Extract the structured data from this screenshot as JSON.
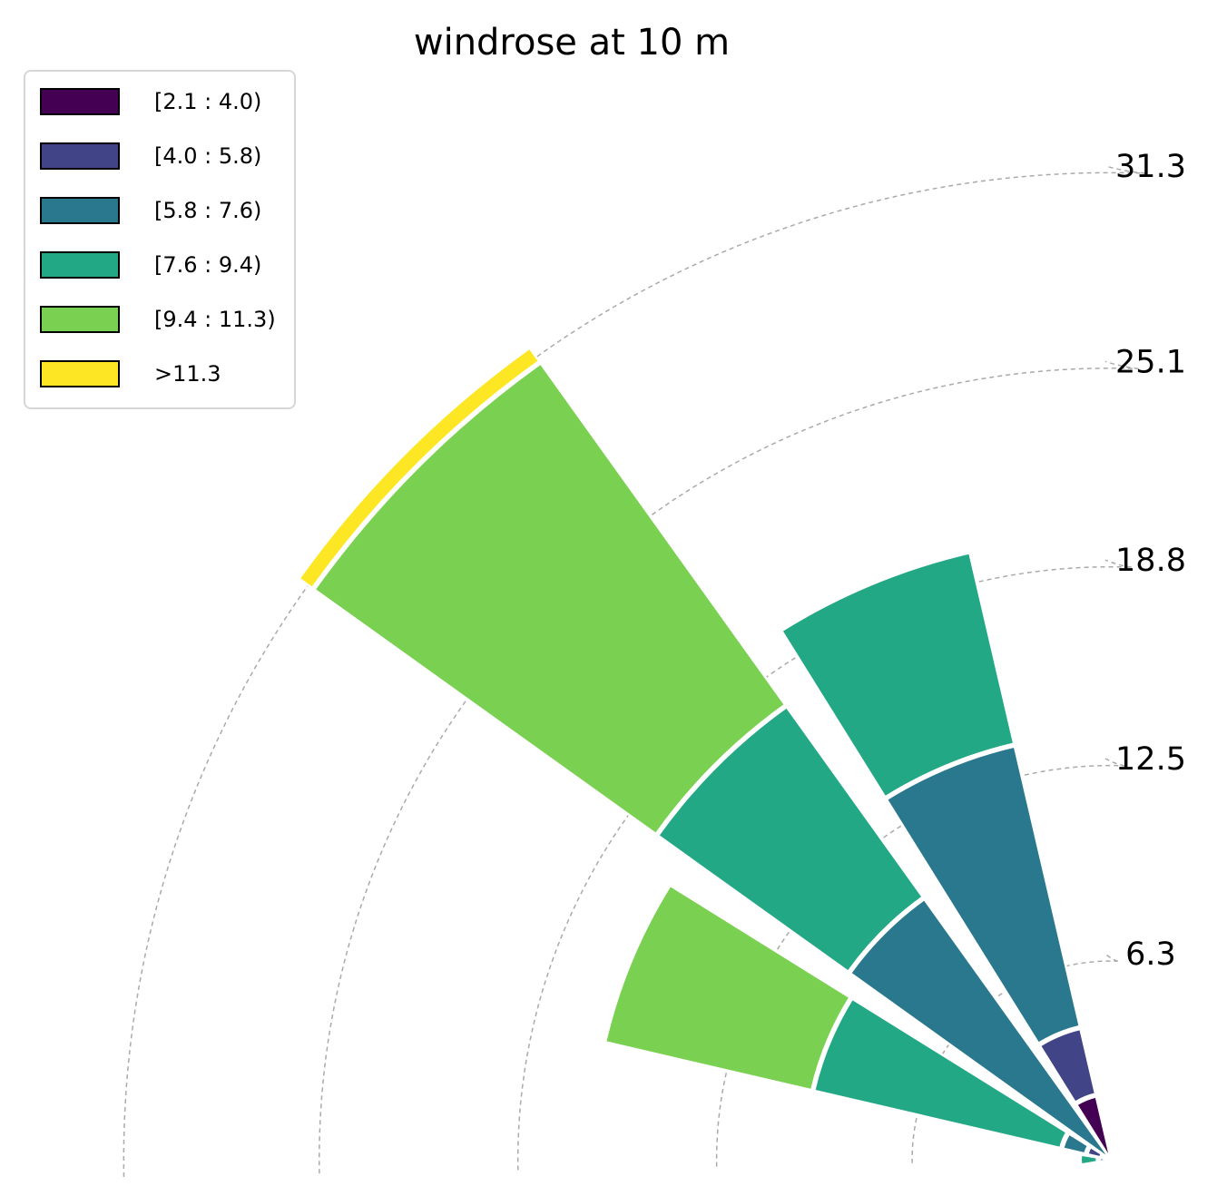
{
  "chart_data": {
    "type": "windrose",
    "title": "windrose at 10 m",
    "radial_ticks": [
      "6.3",
      "12.5",
      "18.8",
      "25.1",
      "31.3"
    ],
    "radial_tick_values": [
      6.3,
      12.5,
      18.8,
      25.1,
      31.3
    ],
    "grid": true,
    "legend_position": "upper-left",
    "bins": [
      {
        "label": "[2.1 : 4.0)",
        "color": "#440154"
      },
      {
        "label": "[4.0 : 5.8)",
        "color": "#414487"
      },
      {
        "label": "[5.8 : 7.6)",
        "color": "#2a788e"
      },
      {
        "label": "[7.6 : 9.4)",
        "color": "#22a884"
      },
      {
        "label": "[9.4 : 11.3)",
        "color": "#7ad151"
      },
      {
        "label": ">11.3",
        "color": "#fde725"
      }
    ],
    "sectors": [
      {
        "direction_deg": 90,
        "values": [
          0.0,
          0.0,
          0.4,
          0.6,
          0.0,
          0.0
        ]
      },
      {
        "direction_deg": 112.5,
        "values": [
          0.3,
          0.5,
          0.8,
          8.1,
          6.8,
          0.0
        ]
      },
      {
        "direction_deg": 135,
        "values": [
          0.0,
          0.0,
          10.2,
          7.5,
          13.4,
          0.6
        ]
      },
      {
        "direction_deg": 157.5,
        "values": [
          2.1,
          2.2,
          9.2,
          6.3,
          0.0,
          0.0
        ]
      },
      {
        "direction_deg": 180,
        "values": [
          0.0,
          0.0,
          0.0,
          0.0,
          0.0,
          0.0
        ]
      }
    ]
  }
}
